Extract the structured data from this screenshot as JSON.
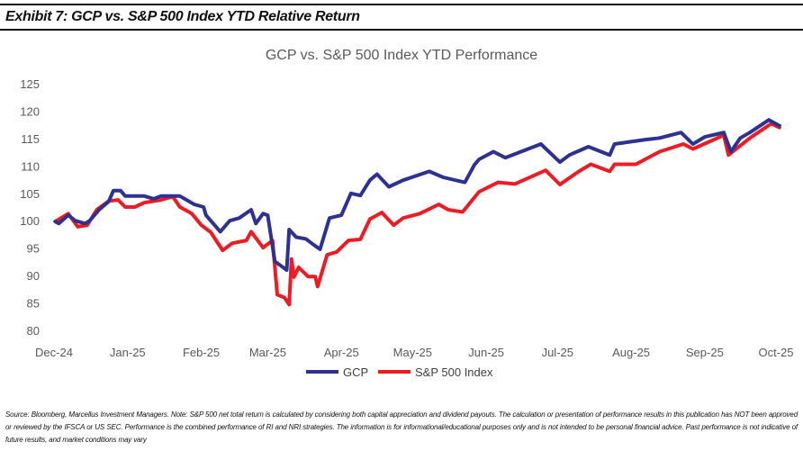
{
  "exhibit_title": "Exhibit 7: GCP vs. S&P 500 Index YTD Relative Return",
  "footer": "Source: Bloomberg, Marcellus Investment Managers. Note: S&P 500 net total return is calculated by considering both capital appreciation and dividend payouts. The calculation or presentation of performance results in this publication has NOT been approved or reviewed by the IFSCA or US SEC. Performance is the combined performance of RI and NRI strategies. The information is for informational/educational purposes only and is not intended to be personal financial advice. Past performance is not indicative of future results, and market conditions may vary",
  "chart_data": {
    "type": "line",
    "title": "GCP vs. S&P 500 Index YTD Performance",
    "xlabel": "",
    "ylabel": "",
    "ylim": [
      80,
      125
    ],
    "yticks": [
      80,
      85,
      90,
      95,
      100,
      105,
      110,
      115,
      120,
      125
    ],
    "xlim": [
      "2024-12-01",
      "2025-10-01"
    ],
    "xticks": [
      {
        "date": "2024-12-01",
        "label": "Dec-24"
      },
      {
        "date": "2025-01-01",
        "label": "Jan-25"
      },
      {
        "date": "2025-02-01",
        "label": "Feb-25"
      },
      {
        "date": "2025-03-01",
        "label": "Mar-25"
      },
      {
        "date": "2025-04-01",
        "label": "Apr-25"
      },
      {
        "date": "2025-05-01",
        "label": "May-25"
      },
      {
        "date": "2025-06-01",
        "label": "Jun-25"
      },
      {
        "date": "2025-07-01",
        "label": "Jul-25"
      },
      {
        "date": "2025-08-01",
        "label": "Aug-25"
      },
      {
        "date": "2025-09-01",
        "label": "Sep-25"
      },
      {
        "date": "2025-10-01",
        "label": "Oct-25"
      }
    ],
    "grid": false,
    "legend": "bottom",
    "series": [
      {
        "name": "GCP",
        "color": "#2e3192",
        "points": [
          [
            "2024-12-01",
            100
          ],
          [
            "2024-12-03",
            99.5
          ],
          [
            "2024-12-07",
            101
          ],
          [
            "2024-12-10",
            100
          ],
          [
            "2024-12-14",
            99.5
          ],
          [
            "2024-12-16",
            100
          ],
          [
            "2024-12-20",
            102
          ],
          [
            "2024-12-24",
            103.5
          ],
          [
            "2024-12-26",
            105.5
          ],
          [
            "2024-12-29",
            105.5
          ],
          [
            "2024-12-31",
            104.5
          ],
          [
            "2025-01-08",
            104.5
          ],
          [
            "2025-01-12",
            104
          ],
          [
            "2025-01-15",
            104.5
          ],
          [
            "2025-01-23",
            104.5
          ],
          [
            "2025-01-29",
            103
          ],
          [
            "2025-02-02",
            102.5
          ],
          [
            "2025-02-03",
            101
          ],
          [
            "2025-02-09",
            98
          ],
          [
            "2025-02-13",
            100
          ],
          [
            "2025-02-17",
            100.5
          ],
          [
            "2025-02-22",
            102
          ],
          [
            "2025-02-24",
            99.5
          ],
          [
            "2025-02-27",
            101.3
          ],
          [
            "2025-03-01",
            101
          ],
          [
            "2025-03-04",
            92.6
          ],
          [
            "2025-03-09",
            91
          ],
          [
            "2025-03-10",
            98.4
          ],
          [
            "2025-03-13",
            97
          ],
          [
            "2025-03-17",
            96.7
          ],
          [
            "2025-03-21",
            95.4
          ],
          [
            "2025-03-23",
            94.8
          ],
          [
            "2025-03-27",
            100.5
          ],
          [
            "2025-04-01",
            101
          ],
          [
            "2025-04-05",
            105
          ],
          [
            "2025-04-09",
            104.6
          ],
          [
            "2025-04-13",
            107.4
          ],
          [
            "2025-04-16",
            108.5
          ],
          [
            "2025-04-21",
            106.2
          ],
          [
            "2025-04-27",
            107.4
          ],
          [
            "2025-05-08",
            109
          ],
          [
            "2025-05-14",
            107.9
          ],
          [
            "2025-05-23",
            107
          ],
          [
            "2025-05-27",
            110.2
          ],
          [
            "2025-05-29",
            111.2
          ],
          [
            "2025-06-04",
            112.6
          ],
          [
            "2025-06-09",
            111.5
          ],
          [
            "2025-06-24",
            114
          ],
          [
            "2025-07-02",
            110.7
          ],
          [
            "2025-07-06",
            112
          ],
          [
            "2025-07-14",
            113.5
          ],
          [
            "2025-07-23",
            112
          ],
          [
            "2025-07-25",
            114
          ],
          [
            "2025-08-07",
            114.8
          ],
          [
            "2025-08-13",
            115.1
          ],
          [
            "2025-08-22",
            116.1
          ],
          [
            "2025-08-27",
            114
          ],
          [
            "2025-09-01",
            115.3
          ],
          [
            "2025-09-09",
            116.1
          ],
          [
            "2025-09-12",
            112.6
          ],
          [
            "2025-09-16",
            115.1
          ],
          [
            "2025-09-20",
            116.1
          ],
          [
            "2025-09-28",
            118.4
          ],
          [
            "2025-10-03",
            117.2
          ]
        ]
      },
      {
        "name": "S&P 500 Index",
        "color": "#ed1c24",
        "points": [
          [
            "2024-12-01",
            99.7
          ],
          [
            "2024-12-05",
            100.8
          ],
          [
            "2024-12-07",
            101.3
          ],
          [
            "2024-12-11",
            98.9
          ],
          [
            "2024-12-15",
            99.2
          ],
          [
            "2024-12-19",
            102
          ],
          [
            "2024-12-24",
            103.6
          ],
          [
            "2024-12-28",
            103.8
          ],
          [
            "2024-12-31",
            102.5
          ],
          [
            "2025-01-04",
            102.5
          ],
          [
            "2025-01-08",
            103.3
          ],
          [
            "2025-01-15",
            103.8
          ],
          [
            "2025-01-20",
            104.4
          ],
          [
            "2025-01-23",
            102.5
          ],
          [
            "2025-01-28",
            101.3
          ],
          [
            "2025-02-01",
            99.2
          ],
          [
            "2025-02-05",
            97.9
          ],
          [
            "2025-02-10",
            94.6
          ],
          [
            "2025-02-14",
            95.9
          ],
          [
            "2025-02-20",
            96.4
          ],
          [
            "2025-02-22",
            98
          ],
          [
            "2025-02-27",
            95.1
          ],
          [
            "2025-03-03",
            96.4
          ],
          [
            "2025-03-05",
            86.5
          ],
          [
            "2025-03-08",
            86
          ],
          [
            "2025-03-10",
            84.7
          ],
          [
            "2025-03-11",
            93
          ],
          [
            "2025-03-12",
            89.7
          ],
          [
            "2025-03-14",
            91.5
          ],
          [
            "2025-03-18",
            89.8
          ],
          [
            "2025-03-21",
            89.8
          ],
          [
            "2025-03-22",
            88
          ],
          [
            "2025-03-26",
            93.8
          ],
          [
            "2025-03-30",
            94.3
          ],
          [
            "2025-04-04",
            96.4
          ],
          [
            "2025-04-09",
            96.6
          ],
          [
            "2025-04-13",
            100.3
          ],
          [
            "2025-04-18",
            101.5
          ],
          [
            "2025-04-23",
            99.2
          ],
          [
            "2025-04-27",
            100.5
          ],
          [
            "2025-05-04",
            101.3
          ],
          [
            "2025-05-12",
            103
          ],
          [
            "2025-05-16",
            102
          ],
          [
            "2025-05-22",
            101.6
          ],
          [
            "2025-05-29",
            105.3
          ],
          [
            "2025-06-06",
            107
          ],
          [
            "2025-06-13",
            106.7
          ],
          [
            "2025-06-26",
            109.2
          ],
          [
            "2025-07-02",
            106.6
          ],
          [
            "2025-07-10",
            109
          ],
          [
            "2025-07-15",
            110.3
          ],
          [
            "2025-07-23",
            109
          ],
          [
            "2025-07-25",
            110.3
          ],
          [
            "2025-08-03",
            110.3
          ],
          [
            "2025-08-13",
            112.6
          ],
          [
            "2025-08-23",
            114
          ],
          [
            "2025-08-27",
            113.1
          ],
          [
            "2025-09-09",
            115.6
          ],
          [
            "2025-09-11",
            112
          ],
          [
            "2025-09-20",
            115.1
          ],
          [
            "2025-09-29",
            117.7
          ],
          [
            "2025-10-03",
            116.9
          ]
        ]
      }
    ]
  }
}
